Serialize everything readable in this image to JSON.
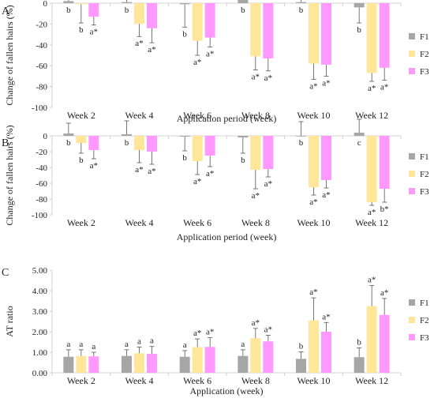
{
  "colors": {
    "F1": "#a6a6a6",
    "F2": "#ffe699",
    "F3": "#ff99ff",
    "axis": "#d0d0d0",
    "text": "#222222"
  },
  "chart_data": [
    {
      "panel_label": "A",
      "type": "bar",
      "ylabel": "Change of fallen hairs (%)",
      "xlabel": "Application period (week)",
      "ylim": [
        -100,
        0
      ],
      "yticks": [
        -100,
        -80,
        -60,
        -40,
        -20,
        0
      ],
      "tick_decimals": 0,
      "grid": false,
      "legend_position": "right",
      "categories": [
        "Week 2",
        "Week 4",
        "Week 6",
        "Week 8",
        "Week 10",
        "Week 12"
      ],
      "series": [
        {
          "name": "F1",
          "color_key": "F1",
          "values": [
            2,
            1,
            -1,
            7,
            1,
            -4
          ],
          "error": [
            16,
            20,
            22,
            20,
            20,
            15
          ],
          "labels": [
            "b",
            "b",
            "b",
            "b",
            "b",
            "b"
          ]
        },
        {
          "name": "F2",
          "color_key": "F2",
          "values": [
            -1,
            -20,
            -36,
            -51,
            -58,
            -67
          ],
          "error": [
            18,
            12,
            14,
            13,
            15,
            8
          ],
          "labels": [
            "b",
            "a*",
            "a*",
            "a*",
            "a*",
            "a*"
          ]
        },
        {
          "name": "F3",
          "color_key": "F3",
          "values": [
            -13,
            -24,
            -33,
            -53,
            -59,
            -62
          ],
          "error": [
            8,
            14,
            9,
            12,
            11,
            12
          ],
          "labels": [
            "a*",
            "a*",
            "a*",
            "a*",
            "a*",
            "a*"
          ]
        }
      ]
    },
    {
      "panel_label": "B",
      "type": "bar",
      "ylabel": "Change of fallen hairs (%)",
      "xlabel": "Application period (week)",
      "ylim": [
        -100,
        0
      ],
      "yticks": [
        -100,
        -80,
        -60,
        -40,
        -20,
        0
      ],
      "tick_decimals": 0,
      "grid": false,
      "legend_position": "right",
      "categories": [
        "Week 2",
        "Week 4",
        "Week 6",
        "Week 8",
        "Week 10",
        "Week 12"
      ],
      "series": [
        {
          "name": "F1",
          "color_key": "F1",
          "values": [
            3,
            2,
            -1,
            -2,
            0,
            4
          ],
          "error": [
            13,
            17,
            18,
            20,
            18,
            17
          ],
          "labels": [
            "b",
            "b",
            "b",
            "b",
            "b",
            "c"
          ]
        },
        {
          "name": "F2",
          "color_key": "F2",
          "values": [
            -9,
            -18,
            -32,
            -43,
            -65,
            -84
          ],
          "error": [
            13,
            16,
            17,
            24,
            10,
            4
          ],
          "labels": [
            "b",
            "a*",
            "a*",
            "a*",
            "a*",
            "a*"
          ]
        },
        {
          "name": "F3",
          "color_key": "F3",
          "values": [
            -18,
            -20,
            -25,
            -42,
            -56,
            -67
          ],
          "error": [
            11,
            16,
            14,
            10,
            10,
            17
          ],
          "labels": [
            "a*",
            "a*",
            "a*",
            "a*",
            "a*",
            "b*"
          ]
        }
      ]
    },
    {
      "panel_label": "C",
      "type": "bar",
      "ylabel": "AT ratio",
      "xlabel": "Application (week)",
      "ylim": [
        0,
        5
      ],
      "yticks": [
        0,
        1,
        2,
        3,
        4,
        5
      ],
      "tick_decimals": 2,
      "grid": false,
      "legend_position": "right",
      "categories": [
        "Week 2",
        "Week 4",
        "Week 6",
        "Week 8",
        "Week 10",
        "Week 12"
      ],
      "series": [
        {
          "name": "F1",
          "color_key": "F1",
          "values": [
            0.78,
            0.82,
            0.78,
            0.82,
            0.68,
            0.76
          ],
          "error": [
            0.34,
            0.3,
            0.3,
            0.3,
            0.34,
            0.46
          ],
          "labels": [
            "a",
            "a",
            "a",
            "a",
            "b",
            "b"
          ]
        },
        {
          "name": "F2",
          "color_key": "F2",
          "values": [
            0.82,
            0.95,
            1.25,
            1.68,
            2.55,
            3.25
          ],
          "error": [
            0.3,
            0.3,
            0.4,
            0.48,
            1.1,
            1.0
          ],
          "labels": [
            "a",
            "a",
            "a*",
            "a*",
            "a*",
            "a*"
          ]
        },
        {
          "name": "F3",
          "color_key": "F3",
          "values": [
            0.8,
            0.92,
            1.26,
            1.53,
            2.0,
            2.82
          ],
          "error": [
            0.2,
            0.36,
            0.45,
            0.3,
            0.45,
            0.8
          ],
          "labels": [
            "a",
            "a",
            "a*",
            "a*",
            "a*",
            "a*"
          ]
        }
      ]
    }
  ]
}
